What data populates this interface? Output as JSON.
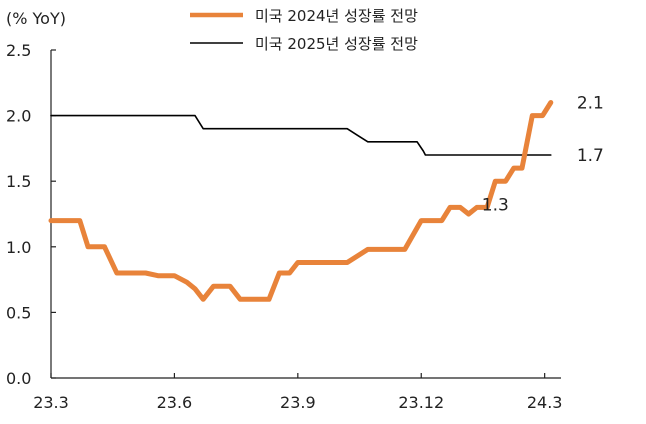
{
  "chart_data": {
    "type": "line",
    "unit_label": "(% YoY)",
    "ylim": [
      0.0,
      2.5
    ],
    "y_ticks": [
      "0.0",
      "0.5",
      "1.0",
      "1.5",
      "2.0",
      "2.5"
    ],
    "x_ticks": [
      "23.3",
      "23.6",
      "23.9",
      "23.12",
      "24.3"
    ],
    "x_range": [
      0,
      12.3
    ],
    "legend_position": "top-center",
    "grid": false,
    "series": [
      {
        "name": "미국 2024년 성장률 전망",
        "color": "#E8833A",
        "points": [
          [
            0.0,
            1.2
          ],
          [
            0.7,
            1.2
          ],
          [
            0.9,
            1.0
          ],
          [
            1.3,
            1.0
          ],
          [
            1.6,
            0.8
          ],
          [
            2.3,
            0.8
          ],
          [
            2.6,
            0.78
          ],
          [
            3.0,
            0.78
          ],
          [
            3.3,
            0.73
          ],
          [
            3.5,
            0.68
          ],
          [
            3.7,
            0.6
          ],
          [
            3.95,
            0.7
          ],
          [
            4.35,
            0.7
          ],
          [
            4.6,
            0.6
          ],
          [
            5.3,
            0.6
          ],
          [
            5.55,
            0.8
          ],
          [
            5.8,
            0.8
          ],
          [
            6.0,
            0.88
          ],
          [
            7.2,
            0.88
          ],
          [
            7.7,
            0.98
          ],
          [
            8.6,
            0.98
          ],
          [
            9.0,
            1.2
          ],
          [
            9.5,
            1.2
          ],
          [
            9.7,
            1.3
          ],
          [
            9.95,
            1.3
          ],
          [
            10.15,
            1.25
          ],
          [
            10.35,
            1.3
          ],
          [
            10.6,
            1.3
          ],
          [
            10.8,
            1.5
          ],
          [
            11.05,
            1.5
          ],
          [
            11.25,
            1.6
          ],
          [
            11.45,
            1.6
          ],
          [
            11.7,
            2.0
          ],
          [
            11.95,
            2.0
          ],
          [
            12.15,
            2.1
          ]
        ],
        "highlight_label": "1.3",
        "end_label": "2.1"
      },
      {
        "name": "미국 2025년 성장률 전망",
        "color": "#000000",
        "points": [
          [
            0.0,
            2.0
          ],
          [
            3.5,
            2.0
          ],
          [
            3.7,
            1.9
          ],
          [
            7.2,
            1.9
          ],
          [
            7.45,
            1.85
          ],
          [
            7.7,
            1.8
          ],
          [
            8.9,
            1.8
          ],
          [
            9.05,
            1.73
          ],
          [
            9.1,
            1.7
          ],
          [
            12.15,
            1.7
          ]
        ],
        "end_label": "1.7"
      }
    ]
  }
}
